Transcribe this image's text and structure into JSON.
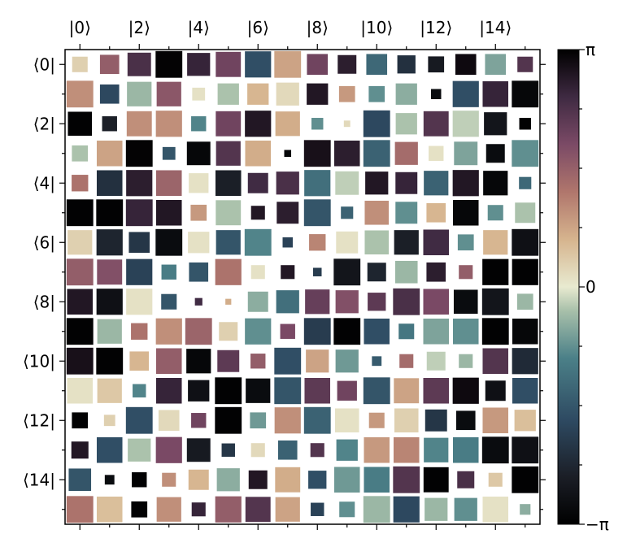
{
  "chart_data": {
    "type": "heatmap",
    "subtype": "hinton",
    "title": "",
    "xlabel": "",
    "ylabel": "",
    "dimension": 16,
    "x_tick_labels": [
      "|0⟩",
      "|2⟩",
      "|4⟩",
      "|6⟩",
      "|8⟩",
      "|10⟩",
      "|12⟩",
      "|14⟩"
    ],
    "x_tick_positions": [
      0,
      2,
      4,
      6,
      8,
      10,
      12,
      14
    ],
    "y_tick_labels": [
      "⟨0|",
      "⟨2|",
      "⟨4|",
      "⟨6|",
      "⟨8|",
      "⟨10|",
      "⟨12|",
      "⟨14|"
    ],
    "y_tick_positions": [
      0,
      2,
      4,
      6,
      8,
      10,
      12,
      14
    ],
    "x_ticks_position": "top",
    "colorbar": {
      "position": "right",
      "range": [
        -3.14159,
        3.14159
      ],
      "labels": [
        {
          "text": "π",
          "value": 3.14159
        },
        {
          "text": "0",
          "value": 0
        },
        {
          "text": "−π",
          "value": -3.14159
        }
      ],
      "colormap": "cubehelix-cyclic",
      "stops": [
        {
          "v": 0.0,
          "color": "#000000"
        },
        {
          "v": 0.1,
          "color": "#1b1e26"
        },
        {
          "v": 0.22,
          "color": "#2e4a62"
        },
        {
          "v": 0.35,
          "color": "#4b8088"
        },
        {
          "v": 0.45,
          "color": "#a8c0aa"
        },
        {
          "v": 0.5,
          "color": "#e8ead0"
        },
        {
          "v": 0.6,
          "color": "#d6b48e"
        },
        {
          "v": 0.7,
          "color": "#b0766c"
        },
        {
          "v": 0.8,
          "color": "#7b4a66"
        },
        {
          "v": 0.9,
          "color": "#3f2a42"
        },
        {
          "v": 1.0,
          "color": "#000000"
        }
      ]
    },
    "magnitude": [
      [
        0.58,
        0.72,
        0.88,
        1,
        0.86,
        0.94,
        0.98,
        1,
        0.78,
        0.7,
        0.78,
        0.68,
        0.6,
        0.78,
        0.78,
        0.58
      ],
      [
        1,
        0.72,
        0.92,
        0.92,
        0.48,
        0.8,
        0.8,
        0.86,
        0.8,
        0.6,
        0.6,
        0.8,
        0.38,
        0.98,
        0.96,
        1
      ],
      [
        0.9,
        0.56,
        0.94,
        0.98,
        0.56,
        0.94,
        0.98,
        0.92,
        0.44,
        0.24,
        1,
        0.8,
        0.94,
        0.98,
        0.86,
        0.44
      ],
      [
        0.6,
        0.96,
        1,
        0.48,
        0.88,
        0.92,
        0.96,
        0.26,
        1,
        0.96,
        1,
        0.86,
        0.56,
        0.88,
        0.7,
        1
      ],
      [
        0.62,
        0.96,
        0.98,
        0.96,
        0.74,
        0.96,
        0.76,
        0.86,
        0.98,
        0.88,
        0.86,
        0.82,
        0.92,
        0.98,
        0.92,
        0.46
      ],
      [
        1,
        1,
        1,
        0.96,
        0.6,
        0.94,
        0.52,
        0.82,
        1,
        0.46,
        0.9,
        0.82,
        0.72,
        0.96,
        0.58,
        0.76
      ],
      [
        0.92,
        0.98,
        0.78,
        1,
        0.8,
        0.92,
        1,
        0.38,
        0.62,
        0.82,
        0.9,
        0.92,
        0.96,
        0.6,
        0.92,
        1
      ],
      [
        1,
        0.94,
        0.98,
        0.56,
        0.72,
        0.98,
        0.52,
        0.52,
        0.32,
        1,
        0.7,
        0.84,
        0.72,
        0.52,
        0.98,
        0.98
      ],
      [
        0.96,
        0.98,
        0.98,
        0.58,
        0.28,
        0.22,
        0.76,
        0.86,
        0.92,
        0.86,
        0.68,
        1,
        0.96,
        0.9,
        1,
        0.6
      ],
      [
        1,
        0.92,
        0.62,
        0.98,
        1,
        0.7,
        0.98,
        0.56,
        1,
        1,
        0.96,
        0.58,
        0.96,
        0.96,
        1,
        0.96
      ],
      [
        1,
        1,
        0.72,
        0.96,
        0.92,
        0.82,
        0.56,
        1,
        0.86,
        0.86,
        0.36,
        0.52,
        0.7,
        0.52,
        0.96,
        0.98
      ],
      [
        0.96,
        0.92,
        0.5,
        0.96,
        0.8,
        1,
        0.92,
        1,
        0.96,
        0.74,
        1,
        0.94,
        0.96,
        0.98,
        0.76,
        0.96
      ],
      [
        0.6,
        0.42,
        1,
        0.78,
        0.56,
        1,
        0.6,
        0.98,
        1,
        0.9,
        0.58,
        0.9,
        0.82,
        0.72,
        0.96,
        0.8
      ],
      [
        0.64,
        0.96,
        0.86,
        0.98,
        0.88,
        0.5,
        0.52,
        0.72,
        0.52,
        0.8,
        0.96,
        0.96,
        0.92,
        0.96,
        1,
        1
      ],
      [
        0.84,
        0.36,
        0.56,
        0.52,
        0.76,
        0.86,
        0.7,
        0.94,
        0.68,
        0.96,
        0.96,
        1,
        0.94,
        0.64,
        0.52,
        1
      ],
      [
        1,
        0.96,
        0.6,
        0.92,
        0.52,
        0.98,
        0.94,
        0.92,
        0.5,
        0.58,
        1,
        0.98,
        0.86,
        0.86,
        0.96,
        0.4
      ]
    ],
    "phase": [
      [
        0.3,
        1.6,
        2.4,
        3.1,
        2.6,
        2.0,
        -1.7,
        0.8,
        2.0,
        2.7,
        -1.3,
        -2.2,
        -2.6,
        3.0,
        -0.6,
        2.3
      ],
      [
        1.0,
        -1.8,
        -0.4,
        1.7,
        0.1,
        -0.3,
        0.6,
        0.2,
        2.8,
        0.9,
        -0.8,
        -0.5,
        -2.9,
        -1.7,
        2.6,
        -3.0
      ],
      [
        -3.1,
        -2.5,
        1.0,
        1.0,
        -0.9,
        2.0,
        2.8,
        0.7,
        -0.8,
        0.2,
        -1.8,
        -0.3,
        2.3,
        -0.2,
        -2.7,
        -3.1
      ],
      [
        -0.3,
        0.8,
        3.1,
        -1.6,
        -3.0,
        2.3,
        0.7,
        -3.0,
        2.9,
        2.7,
        -1.4,
        1.4,
        0.1,
        -0.6,
        -2.9,
        -0.8
      ],
      [
        1.3,
        -2.2,
        2.7,
        1.5,
        0.1,
        -2.5,
        2.5,
        2.4,
        -1.2,
        -0.2,
        2.8,
        2.6,
        -1.4,
        2.8,
        -3.0,
        -1.3
      ],
      [
        -3.1,
        -3.1,
        2.6,
        2.8,
        0.9,
        -0.3,
        2.8,
        2.7,
        -1.6,
        -1.4,
        1.0,
        -0.8,
        0.6,
        -3.0,
        -0.8,
        -0.3
      ],
      [
        0.3,
        -2.4,
        -2.1,
        -2.9,
        0.1,
        -1.6,
        -0.9,
        -1.9,
        1.1,
        0.1,
        -0.3,
        -2.5,
        2.5,
        -0.8,
        0.6,
        -2.8
      ],
      [
        1.6,
        1.8,
        -1.9,
        -1.0,
        -1.6,
        1.3,
        0.1,
        2.8,
        -2.0,
        -2.7,
        -2.4,
        -0.4,
        2.7,
        1.6,
        -3.1,
        -3.1
      ],
      [
        2.8,
        -2.8,
        0.1,
        -1.6,
        2.5,
        0.7,
        -0.5,
        -1.2,
        2.1,
        1.8,
        2.2,
        2.4,
        1.9,
        -2.9,
        -2.7,
        -0.4
      ],
      [
        -3.1,
        -0.4,
        1.3,
        1.0,
        1.5,
        0.3,
        -0.8,
        1.9,
        -2.0,
        -3.1,
        -1.7,
        -1.1,
        -0.6,
        -0.8,
        -3.1,
        -3.0
      ],
      [
        2.9,
        -3.1,
        0.6,
        1.6,
        -3.0,
        2.2,
        1.6,
        -1.7,
        0.8,
        -0.7,
        -1.5,
        1.4,
        -0.2,
        -0.4,
        2.3,
        -2.3
      ],
      [
        0.1,
        0.4,
        -0.9,
        2.6,
        -2.8,
        -3.1,
        -2.9,
        -1.6,
        2.2,
        2.0,
        -1.6,
        0.8,
        2.2,
        3.0,
        -2.8,
        -1.7
      ],
      [
        -3.1,
        0.3,
        -1.7,
        0.2,
        2.0,
        -3.1,
        -0.7,
        1.0,
        -1.4,
        0.1,
        0.9,
        0.3,
        -2.1,
        -2.9,
        0.9,
        0.5
      ],
      [
        2.8,
        -1.7,
        -0.3,
        1.9,
        -2.6,
        -2.1,
        0.2,
        -1.4,
        2.3,
        -0.9,
        0.9,
        1.1,
        -0.9,
        -1.0,
        -2.9,
        -2.8
      ],
      [
        -1.6,
        -2.9,
        -3.1,
        1.0,
        0.6,
        -0.5,
        2.8,
        0.7,
        -1.7,
        -0.7,
        -1.0,
        2.3,
        -3.1,
        2.4,
        0.4,
        -3.1
      ],
      [
        1.3,
        0.5,
        -3.1,
        1.0,
        2.6,
        1.6,
        2.3,
        0.8,
        -1.9,
        -0.8,
        -0.4,
        -1.8,
        -0.4,
        -0.8,
        0.1,
        -0.5
      ]
    ]
  }
}
